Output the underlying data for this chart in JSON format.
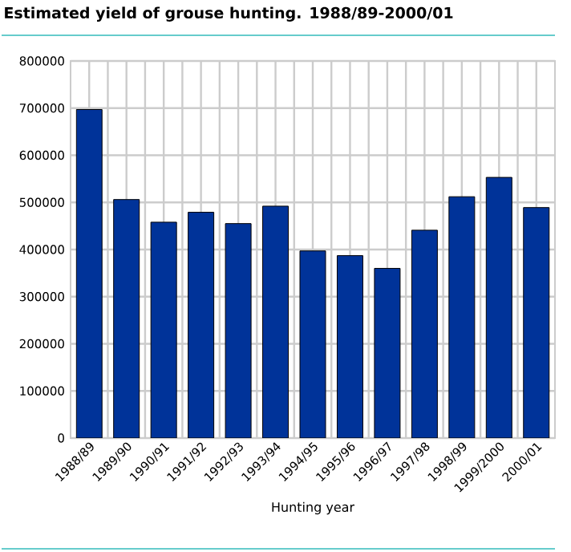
{
  "chart_data": {
    "type": "bar",
    "title": "Estimated yield of grouse hunting. 1988/89-2000/01",
    "xlabel": "Hunting year",
    "categories": [
      "1988/89",
      "1989/90",
      "1990/91",
      "1991/92",
      "1992/93",
      "1993/94",
      "1994/95",
      "1995/96",
      "1996/97",
      "1997/98",
      "1998/99",
      "1999/2000",
      "2000/01"
    ],
    "values": [
      697000,
      506000,
      458000,
      479000,
      455000,
      492000,
      397000,
      387000,
      360000,
      441000,
      512000,
      553000,
      489000
    ],
    "color": "#003399",
    "ylim": [
      0,
      800000
    ],
    "yticks": [
      0,
      100000,
      200000,
      300000,
      400000,
      500000,
      600000,
      700000,
      800000
    ],
    "grid": true
  }
}
